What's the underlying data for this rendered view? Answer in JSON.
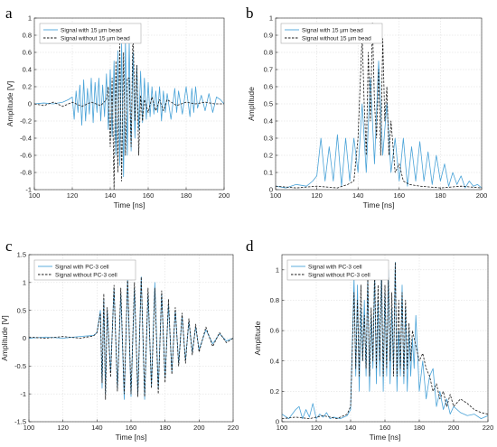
{
  "colors": {
    "with": "#4aa3d8",
    "without": "#1a1a1a"
  },
  "chart_data": [
    {
      "type": "line",
      "panel_label": "a",
      "xlabel": "Time [ns]",
      "ylabel": "Amplitude [V]",
      "xlim": [
        100,
        200
      ],
      "ylim": [
        -1,
        1
      ],
      "xticks": [
        100,
        120,
        140,
        160,
        180,
        200
      ],
      "yticks": [
        -1,
        -0.8,
        -0.6,
        -0.4,
        -0.2,
        0,
        0.2,
        0.4,
        0.6,
        0.8,
        1
      ],
      "ytick_labels": [
        "-1",
        "-0.8",
        "-0.6",
        "-0.4",
        "-0.2",
        "0",
        "0.2",
        "0.4",
        "0.6",
        "0.8",
        "1"
      ],
      "grid": true,
      "legend_position": "top-left",
      "series": [
        {
          "name": "Signal with 15 µm bead",
          "style": "solid",
          "color_key": "with",
          "x": [
            100,
            105,
            110,
            115,
            118,
            120,
            121,
            122,
            123,
            124,
            125,
            126,
            127,
            128,
            129,
            130,
            131,
            132,
            133,
            134,
            135,
            136,
            137,
            138,
            139,
            140,
            141,
            142,
            143,
            144,
            145,
            146,
            147,
            148,
            149,
            150,
            151,
            152,
            153,
            154,
            155,
            156,
            157,
            158,
            159,
            160,
            161,
            162,
            163,
            164,
            165,
            166,
            167,
            168,
            169,
            170,
            172,
            174,
            175,
            176,
            178,
            180,
            182,
            183,
            184,
            185,
            186,
            188,
            190,
            192,
            194,
            196,
            198,
            200
          ],
          "y": [
            0,
            0.01,
            0,
            0.02,
            0.05,
            0.08,
            -0.18,
            0.15,
            -0.1,
            0.22,
            -0.25,
            0.28,
            -0.2,
            0.18,
            -0.12,
            0.3,
            -0.22,
            0.25,
            -0.1,
            0.3,
            -0.2,
            0.22,
            -0.15,
            0.35,
            -0.3,
            0.4,
            -0.38,
            0.5,
            -0.6,
            0.62,
            -0.72,
            0.7,
            -0.85,
            0.75,
            -0.6,
            0.72,
            -0.55,
            0.6,
            -0.4,
            0.45,
            -0.3,
            0.38,
            -0.22,
            0.3,
            -0.18,
            0.25,
            -0.15,
            0.2,
            -0.12,
            0.15,
            -0.1,
            0.2,
            -0.2,
            0.15,
            -0.1,
            0.12,
            -0.18,
            0.18,
            -0.1,
            0.15,
            -0.12,
            0.2,
            -0.15,
            0.18,
            -0.1,
            0.2,
            -0.05,
            0.1,
            -0.08,
            0.12,
            -0.1,
            0.08,
            0.05,
            0
          ]
        },
        {
          "name": "Signal without 15 µm bead",
          "style": "dashed",
          "color_key": "without",
          "x": [
            100,
            105,
            110,
            115,
            120,
            125,
            130,
            135,
            138,
            139,
            140,
            141,
            142,
            143,
            144,
            145,
            146,
            147,
            148,
            149,
            150,
            151,
            152,
            153,
            154,
            155,
            156,
            157,
            158,
            160,
            162,
            164,
            166,
            168,
            170,
            175,
            180,
            185,
            190,
            195,
            200
          ],
          "y": [
            0,
            -0.02,
            0.02,
            -0.03,
            0.02,
            -0.03,
            0.02,
            -0.02,
            0.05,
            0.2,
            -0.5,
            0.3,
            -1,
            0.5,
            -0.8,
            0.7,
            -0.9,
            0.6,
            -0.6,
            0.3,
            0.3,
            -0.5,
            0.92,
            -0.2,
            0.45,
            -0.6,
            0.1,
            -0.2,
            0.05,
            -0.1,
            0.08,
            -0.08,
            0.05,
            -0.08,
            0.05,
            -0.02,
            0.02,
            0,
            0.02,
            0,
            0
          ]
        }
      ]
    },
    {
      "type": "line",
      "panel_label": "b",
      "xlabel": "Time [ns]",
      "ylabel": "Amplitude",
      "xlim": [
        100,
        200
      ],
      "ylim": [
        0,
        1
      ],
      "xticks": [
        100,
        120,
        140,
        160,
        180,
        200
      ],
      "yticks": [
        0,
        0.1,
        0.2,
        0.3,
        0.4,
        0.5,
        0.6,
        0.7,
        0.8,
        0.9,
        1
      ],
      "ytick_labels": [
        "0",
        "0.1",
        "0.2",
        "0.3",
        "0.4",
        "0.5",
        "0.6",
        "0.7",
        "0.8",
        "0.9",
        "1"
      ],
      "grid": true,
      "legend_position": "top-left",
      "series": [
        {
          "name": "Signal with 15 µm bead",
          "style": "solid",
          "color_key": "with",
          "x": [
            100,
            105,
            110,
            115,
            118,
            120,
            122,
            124,
            126,
            128,
            130,
            132,
            134,
            136,
            138,
            140,
            142,
            144,
            146,
            148,
            150,
            152,
            154,
            156,
            158,
            160,
            162,
            164,
            166,
            168,
            170,
            172,
            174,
            176,
            178,
            180,
            182,
            184,
            186,
            188,
            190,
            192,
            194,
            196,
            198,
            200
          ],
          "y": [
            0.02,
            0.01,
            0.03,
            0.02,
            0.05,
            0.08,
            0.3,
            0.05,
            0.25,
            0.05,
            0.32,
            0.02,
            0.3,
            0.05,
            0.3,
            0.1,
            0.5,
            0.1,
            0.65,
            0.15,
            0.75,
            0.2,
            0.5,
            0.1,
            0.3,
            0.05,
            0.3,
            0.02,
            0.25,
            0.05,
            0.28,
            0.05,
            0.22,
            0.03,
            0.2,
            0.05,
            0.15,
            0.02,
            0.1,
            0.03,
            0.08,
            0.01,
            0.05,
            0.02,
            0.03,
            0.01
          ]
        },
        {
          "name": "Signal without 15 µm bead",
          "style": "dashed",
          "color_key": "without",
          "x": [
            100,
            110,
            120,
            130,
            135,
            138,
            140,
            141,
            142,
            143,
            144,
            145,
            146,
            147,
            148,
            149,
            150,
            151,
            152,
            153,
            154,
            155,
            156,
            158,
            160,
            162,
            165,
            170,
            180,
            190,
            200
          ],
          "y": [
            0.02,
            0.01,
            0.02,
            0.01,
            0.03,
            0.05,
            0.3,
            0.6,
            0.9,
            0.5,
            0.2,
            0.8,
            0.4,
            0.97,
            0.5,
            0.3,
            0.7,
            0.2,
            0.88,
            0.4,
            0.6,
            0.2,
            0.4,
            0.1,
            0.15,
            0.05,
            0.03,
            0.02,
            0.01,
            0.02,
            0.01
          ]
        }
      ]
    },
    {
      "type": "line",
      "panel_label": "c",
      "xlabel": "Time [ns]",
      "ylabel": "Amplitude [V]",
      "xlim": [
        100,
        220
      ],
      "ylim": [
        -1.5,
        1.5
      ],
      "xticks": [
        100,
        120,
        140,
        160,
        180,
        200,
        220
      ],
      "yticks": [
        -1.5,
        -1,
        -0.5,
        0,
        0.5,
        1,
        1.5
      ],
      "ytick_labels": [
        "-1.5",
        "-1",
        "-0.5",
        "0",
        "0.5",
        "1",
        "1.5"
      ],
      "grid": true,
      "legend_position": "top-left",
      "series": [
        {
          "name": "Signal with PC-3 cell",
          "style": "solid",
          "color_key": "with",
          "x": [
            100,
            110,
            120,
            130,
            138,
            140,
            142,
            143,
            144,
            145,
            146,
            148,
            150,
            152,
            154,
            156,
            158,
            160,
            162,
            164,
            166,
            168,
            170,
            172,
            174,
            176,
            178,
            180,
            182,
            184,
            186,
            188,
            190,
            192,
            194,
            196,
            198,
            200,
            204,
            208,
            212,
            216,
            220
          ],
          "y": [
            0,
            0.02,
            0,
            0.03,
            0.05,
            0.1,
            0.5,
            -0.9,
            0.7,
            -1,
            0.5,
            -0.6,
            0.9,
            -0.9,
            0.8,
            -1.1,
            1.05,
            -1.05,
            0.9,
            -1.0,
            1.1,
            -1.1,
            0.8,
            -0.85,
            1.0,
            -0.9,
            0.8,
            -0.7,
            0.6,
            -0.6,
            0.5,
            -0.45,
            0.4,
            -0.4,
            0.3,
            -0.25,
            0.2,
            -0.2,
            0.15,
            -0.1,
            0.08,
            -0.05,
            0
          ]
        },
        {
          "name": "Signal without PC-3 cell",
          "style": "dashed",
          "color_key": "without",
          "x": [
            100,
            110,
            120,
            130,
            138,
            140,
            142,
            143,
            144,
            145,
            146,
            148,
            150,
            152,
            154,
            156,
            158,
            160,
            162,
            164,
            166,
            168,
            170,
            172,
            174,
            176,
            178,
            180,
            182,
            184,
            186,
            188,
            190,
            192,
            194,
            196,
            198,
            200,
            204,
            208,
            212,
            216,
            220
          ],
          "y": [
            0.02,
            0,
            0.03,
            0,
            0.04,
            0.1,
            0.45,
            -0.8,
            0.8,
            -1.1,
            0.55,
            -0.7,
            0.95,
            -0.95,
            0.9,
            -1.0,
            1.1,
            -1.0,
            1.0,
            -1.05,
            1.1,
            -1.05,
            0.9,
            -0.9,
            0.9,
            -1.0,
            0.85,
            -0.8,
            0.7,
            -0.65,
            0.55,
            -0.5,
            0.45,
            -0.45,
            0.35,
            -0.3,
            0.25,
            -0.25,
            0.2,
            -0.15,
            0.1,
            -0.08,
            0
          ]
        }
      ]
    },
    {
      "type": "line",
      "panel_label": "d",
      "xlabel": "Time [ns]",
      "ylabel": "Amplitude",
      "xlim": [
        100,
        220
      ],
      "ylim": [
        0,
        1.1
      ],
      "xticks": [
        100,
        120,
        140,
        160,
        180,
        200,
        220
      ],
      "yticks": [
        0,
        0.2,
        0.4,
        0.6,
        0.8,
        1
      ],
      "ytick_labels": [
        "0",
        "0.2",
        "0.4",
        "0.6",
        "0.8",
        "1"
      ],
      "grid": true,
      "legend_position": "top-left",
      "series": [
        {
          "name": "Signal with PC-3 cell",
          "style": "solid",
          "color_key": "with",
          "x": [
            100,
            104,
            108,
            110,
            112,
            114,
            116,
            118,
            120,
            122,
            124,
            126,
            128,
            130,
            134,
            138,
            140,
            142,
            143,
            144,
            145,
            146,
            147,
            148,
            149,
            150,
            151,
            152,
            153,
            154,
            155,
            156,
            157,
            158,
            159,
            160,
            161,
            162,
            163,
            164,
            165,
            166,
            167,
            168,
            169,
            170,
            171,
            172,
            173,
            174,
            175,
            176,
            177,
            178,
            180,
            182,
            184,
            186,
            188,
            190,
            192,
            194,
            196,
            198,
            200,
            204,
            208,
            212,
            216,
            220
          ],
          "y": [
            0.05,
            0.02,
            0.08,
            0.1,
            0.02,
            0.08,
            0.03,
            0.12,
            0.02,
            0.05,
            0.03,
            0.06,
            0.02,
            0.03,
            0.02,
            0.04,
            0.08,
            0.95,
            0.3,
            0.9,
            0.2,
            0.75,
            0.4,
            0.8,
            0.3,
            0.95,
            0.2,
            0.7,
            0.35,
            1.0,
            0.25,
            0.8,
            0.3,
            1.05,
            0.2,
            0.85,
            0.3,
            1.0,
            0.25,
            0.75,
            0.35,
            1.05,
            0.2,
            0.6,
            0.3,
            0.9,
            0.25,
            0.75,
            0.2,
            0.6,
            0.3,
            0.55,
            0.35,
            0.7,
            0.2,
            0.4,
            0.15,
            0.3,
            0.35,
            0.1,
            0.2,
            0.08,
            0.15,
            0.05,
            0.1,
            0.06,
            0.04,
            0.05,
            0.02,
            0.04
          ]
        },
        {
          "name": "Signal without PC-3 cell",
          "style": "dashed",
          "color_key": "without",
          "x": [
            100,
            108,
            116,
            124,
            132,
            138,
            140,
            142,
            143,
            144,
            145,
            146,
            147,
            148,
            149,
            150,
            151,
            152,
            153,
            154,
            155,
            156,
            157,
            158,
            159,
            160,
            161,
            162,
            163,
            164,
            165,
            166,
            167,
            168,
            169,
            170,
            171,
            172,
            173,
            174,
            175,
            176,
            178,
            180,
            182,
            184,
            186,
            188,
            190,
            192,
            194,
            196,
            198,
            200,
            204,
            208,
            212,
            216,
            220
          ],
          "y": [
            0.02,
            0.03,
            0.02,
            0.04,
            0.02,
            0.05,
            0.1,
            0.85,
            0.35,
            0.8,
            0.3,
            0.9,
            0.4,
            0.7,
            0.35,
            0.95,
            0.3,
            0.75,
            0.4,
            1.0,
            0.35,
            0.9,
            0.4,
            0.95,
            0.3,
            0.9,
            0.35,
            0.95,
            0.4,
            0.85,
            0.3,
            1.05,
            0.3,
            0.8,
            0.35,
            0.85,
            0.3,
            0.8,
            0.35,
            0.65,
            0.4,
            0.6,
            0.5,
            0.4,
            0.45,
            0.35,
            0.3,
            0.2,
            0.25,
            0.15,
            0.2,
            0.1,
            0.18,
            0.1,
            0.15,
            0.12,
            0.08,
            0.06,
            0.05
          ]
        }
      ]
    }
  ]
}
